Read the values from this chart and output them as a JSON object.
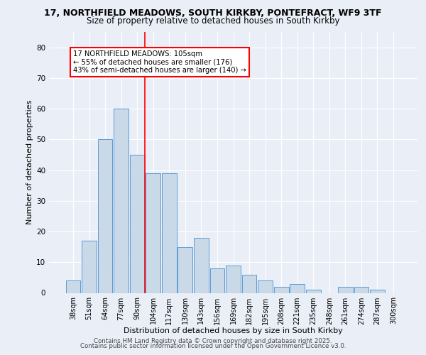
{
  "title_line1": "17, NORTHFIELD MEADOWS, SOUTH KIRKBY, PONTEFRACT, WF9 3TF",
  "title_line2": "Size of property relative to detached houses in South Kirkby",
  "xlabel": "Distribution of detached houses by size in South Kirkby",
  "ylabel": "Number of detached properties",
  "bar_labels": [
    "38sqm",
    "51sqm",
    "64sqm",
    "77sqm",
    "90sqm",
    "104sqm",
    "117sqm",
    "130sqm",
    "143sqm",
    "156sqm",
    "169sqm",
    "182sqm",
    "195sqm",
    "208sqm",
    "221sqm",
    "235sqm",
    "248sqm",
    "261sqm",
    "274sqm",
    "287sqm",
    "300sqm"
  ],
  "bar_values": [
    4,
    17,
    50,
    60,
    45,
    39,
    39,
    15,
    18,
    8,
    9,
    6,
    4,
    2,
    3,
    1,
    0,
    2,
    2,
    1,
    0
  ],
  "bar_color": "#c9d9e8",
  "bar_edge_color": "#5b9bd5",
  "vline_index": 5,
  "annotation_text": "17 NORTHFIELD MEADOWS: 105sqm\n← 55% of detached houses are smaller (176)\n43% of semi-detached houses are larger (140) →",
  "vline_color": "red",
  "ylim": [
    0,
    85
  ],
  "yticks": [
    0,
    10,
    20,
    30,
    40,
    50,
    60,
    70,
    80
  ],
  "footer_line1": "Contains HM Land Registry data © Crown copyright and database right 2025.",
  "footer_line2": "Contains public sector information licensed under the Open Government Licence v3.0.",
  "bg_color": "#eaeff7",
  "plot_bg_color": "#eaeff7"
}
